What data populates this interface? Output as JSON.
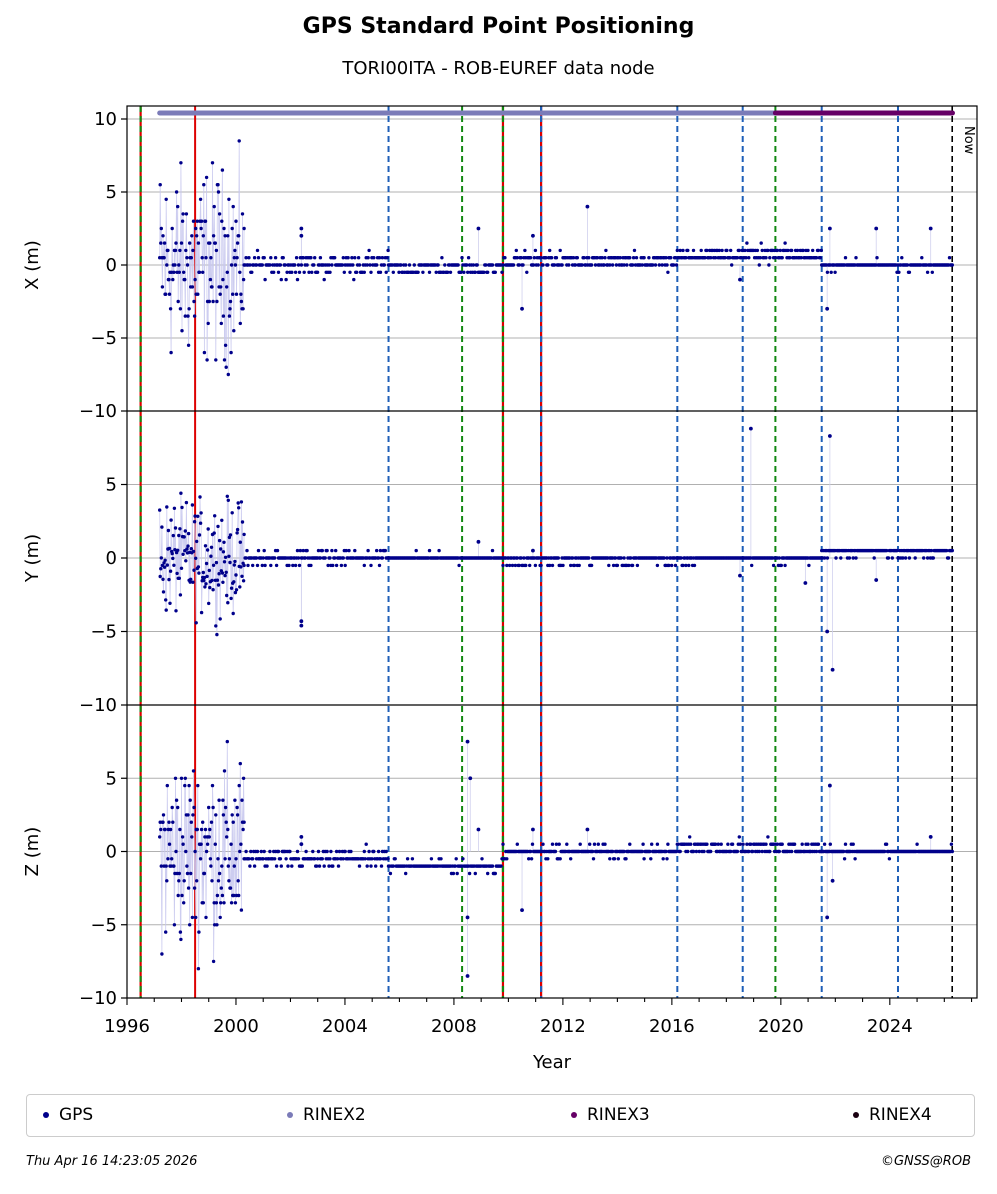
{
  "title": "GPS Standard Point Positioning",
  "subtitle": "TORI00ITA - ROB-EUREF data node",
  "footer": {
    "timestamp": "Thu Apr 16 14:23:05 2026",
    "copyright": "©GNSS@ROB"
  },
  "now_label": "Now",
  "legend": [
    {
      "label": "GPS",
      "color": "#00008b"
    },
    {
      "label": "RINEX2",
      "color": "#7b7bb8"
    },
    {
      "label": "RINEX3",
      "color": "#660066"
    },
    {
      "label": "RINEX4",
      "color": "#1a0010"
    }
  ],
  "chart_data": {
    "type": "scatter",
    "xlabel": "Year",
    "xlim": [
      1996,
      2027.2
    ],
    "x_ticks": [
      1996,
      2000,
      2004,
      2008,
      2012,
      2016,
      2020,
      2024
    ],
    "x_tick_labels": [
      "1996",
      "2000",
      "2004",
      "2008",
      "2012",
      "2016",
      "2020",
      "2024"
    ],
    "grid": "horizontal",
    "legend_position": "bottom",
    "now_year": 2026.29,
    "panels": [
      {
        "ylabel": "X (m)",
        "ylim": [
          -10,
          10
        ],
        "y_ticks": [
          -10,
          -5,
          0,
          5,
          10
        ],
        "y_tick_labels": [
          "−10",
          "−5",
          "0",
          "5",
          "10"
        ]
      },
      {
        "ylabel": "Y (m)",
        "ylim": [
          -10,
          10
        ],
        "y_ticks": [
          -10,
          -5,
          0,
          5
        ],
        "y_tick_labels": [
          "−10",
          "−5",
          "0",
          "5"
        ]
      },
      {
        "ylabel": "Z (m)",
        "ylim": [
          -10,
          10
        ],
        "y_ticks": [
          -10,
          -5,
          0,
          5
        ],
        "y_tick_labels": [
          "−10",
          "−5",
          "0",
          "5"
        ]
      }
    ],
    "event_lines": [
      {
        "year": 1996.5,
        "kind": "green-red"
      },
      {
        "year": 1998.5,
        "kind": "red"
      },
      {
        "year": 2005.6,
        "kind": "blue"
      },
      {
        "year": 2008.3,
        "kind": "green"
      },
      {
        "year": 2009.8,
        "kind": "green-red"
      },
      {
        "year": 2011.2,
        "kind": "blue-red"
      },
      {
        "year": 2016.2,
        "kind": "blue"
      },
      {
        "year": 2018.6,
        "kind": "blue"
      },
      {
        "year": 2019.8,
        "kind": "green"
      },
      {
        "year": 2021.5,
        "kind": "blue"
      },
      {
        "year": 2024.3,
        "kind": "blue"
      }
    ],
    "rinex_bars": [
      {
        "series": "RINEX2",
        "start": 1997.2,
        "end": 2019.8,
        "color": "#7b7bb8"
      },
      {
        "series": "RINEX3",
        "start": 2019.8,
        "end": 2026.3,
        "color": "#660066"
      }
    ],
    "series": [
      {
        "name": "GPS",
        "segments": [
          {
            "start": 1997.2,
            "end": 2000.3,
            "x_center": 0.0,
            "x_spread": 9.5,
            "y_center": 0.0,
            "y_spread": 5.5,
            "z_center": 0.0,
            "z_spread": 9.5,
            "quantized": true
          },
          {
            "start": 2000.3,
            "end": 2005.6,
            "x_center": 0.0,
            "x_spread": 1.2,
            "y_center": 0.0,
            "y_spread": 0.7,
            "z_center": -0.5,
            "z_spread": 1.0,
            "quantized": true
          },
          {
            "start": 2005.6,
            "end": 2009.8,
            "x_center": -0.2,
            "x_spread": 0.8,
            "y_center": 0.0,
            "y_spread": 0.4,
            "z_center": -1.0,
            "z_spread": 0.6,
            "quantized": true
          },
          {
            "start": 2009.8,
            "end": 2016.2,
            "x_center": 0.3,
            "x_spread": 0.7,
            "y_center": -0.2,
            "y_spread": 0.3,
            "z_center": 0.0,
            "z_spread": 0.6,
            "quantized": true
          },
          {
            "start": 2016.2,
            "end": 2021.5,
            "x_center": 0.7,
            "x_spread": 0.7,
            "y_center": -0.1,
            "y_spread": 0.3,
            "z_center": 0.3,
            "z_spread": 0.6,
            "quantized": true
          },
          {
            "start": 2021.5,
            "end": 2026.3,
            "x_center": 0.0,
            "x_spread": 0.5,
            "y_center": 0.3,
            "y_spread": 0.2,
            "z_center": 0.0,
            "z_spread": 0.4,
            "quantized": true
          }
        ],
        "outliers": [
          {
            "year": 2002.4,
            "x": 2.5,
            "y": -4.3,
            "z": 1.0
          },
          {
            "year": 2002.4,
            "x": 2.0,
            "y": -4.6,
            "z": 0.5
          },
          {
            "year": 2008.5,
            "x": 0.0,
            "y": 0.0,
            "z": 7.5
          },
          {
            "year": 2008.6,
            "x": 0.0,
            "y": 0.0,
            "z": 5.0
          },
          {
            "year": 2008.5,
            "x": 0.0,
            "y": 0.0,
            "z": -8.5
          },
          {
            "year": 2008.5,
            "x": 0.0,
            "y": 0.0,
            "z": -4.5
          },
          {
            "year": 2008.9,
            "x": 2.5,
            "y": 1.1,
            "z": 1.5
          },
          {
            "year": 2010.9,
            "x": 2.0,
            "y": 0.5,
            "z": 1.5
          },
          {
            "year": 2010.5,
            "x": -3.0,
            "y": 0.0,
            "z": -4.0
          },
          {
            "year": 2012.9,
            "x": 4.0,
            "y": 0.0,
            "z": 1.5
          },
          {
            "year": 2018.9,
            "x": 0.0,
            "y": 8.8,
            "z": 0.0
          },
          {
            "year": 2018.5,
            "x": -1.0,
            "y": -1.2,
            "z": 0.0
          },
          {
            "year": 2020.9,
            "x": 0.0,
            "y": -1.7,
            "z": 0.0
          },
          {
            "year": 2021.8,
            "x": 2.5,
            "y": 8.3,
            "z": 4.5
          },
          {
            "year": 2021.7,
            "x": -3.0,
            "y": -5.0,
            "z": -4.5
          },
          {
            "year": 2021.9,
            "x": 0.0,
            "y": -7.6,
            "z": -2.0
          },
          {
            "year": 2023.5,
            "x": 2.5,
            "y": -1.5,
            "z": 0.0
          },
          {
            "year": 2025.5,
            "x": 2.5,
            "y": 0.0,
            "z": 1.0
          }
        ]
      }
    ]
  }
}
